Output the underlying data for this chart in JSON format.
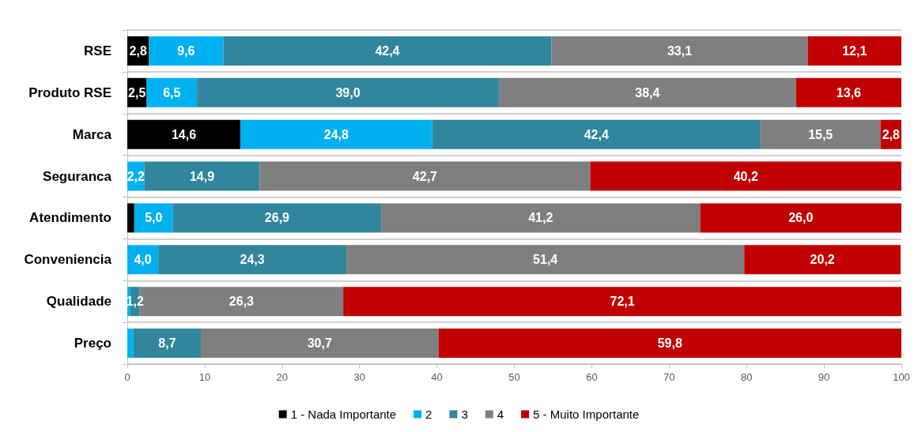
{
  "chart_data": {
    "type": "bar",
    "orientation": "horizontal",
    "stacked": true,
    "categories": [
      "RSE",
      "Produto RSE",
      "Marca",
      "Seguranca",
      "Atendimento",
      "Conveniencia",
      "Qualidade",
      "Preço"
    ],
    "series": [
      {
        "name": "1 - Nada Importante",
        "color": "#000000",
        "values": [
          2.8,
          2.5,
          14.6,
          null,
          0.9,
          null,
          null,
          null
        ],
        "value_labels": [
          "2,8",
          "2,5",
          "14,6",
          null,
          null,
          null,
          null,
          null
        ]
      },
      {
        "name": "2",
        "color": "#00b0f0",
        "values": [
          9.6,
          6.5,
          24.8,
          2.2,
          5.0,
          4.0,
          0.4,
          0.8
        ],
        "value_labels": [
          "9,6",
          "6,5",
          "24,8",
          "2,2",
          "5,0",
          "4,0",
          null,
          null
        ]
      },
      {
        "name": "3",
        "color": "#31859c",
        "values": [
          42.4,
          39.0,
          42.4,
          14.9,
          26.9,
          24.3,
          1.2,
          8.7
        ],
        "value_labels": [
          "42,4",
          "39,0",
          "42,4",
          "14,9",
          "26,9",
          "24,3",
          "1,2",
          "8,7"
        ]
      },
      {
        "name": "4",
        "color": "#7f7f7f",
        "values": [
          33.1,
          38.4,
          15.5,
          42.7,
          41.2,
          51.4,
          26.3,
          30.7
        ],
        "value_labels": [
          "33,1",
          "38,4",
          "15,5",
          "42,7",
          "41,2",
          "51,4",
          "26,3",
          "30,7"
        ]
      },
      {
        "name": "5 - Muito Importante",
        "color": "#c00000",
        "values": [
          12.1,
          13.6,
          2.8,
          40.2,
          26.0,
          20.2,
          72.1,
          59.8
        ],
        "value_labels": [
          "12,1",
          "13,6",
          "2,8",
          "40,2",
          "26,0",
          "20,2",
          "72,1",
          "59,8"
        ]
      }
    ],
    "xlim": [
      0,
      100
    ],
    "xticks": [
      0,
      10,
      20,
      30,
      40,
      50,
      60,
      70,
      80,
      90,
      100
    ],
    "grid": "y",
    "legend": "bottom"
  }
}
